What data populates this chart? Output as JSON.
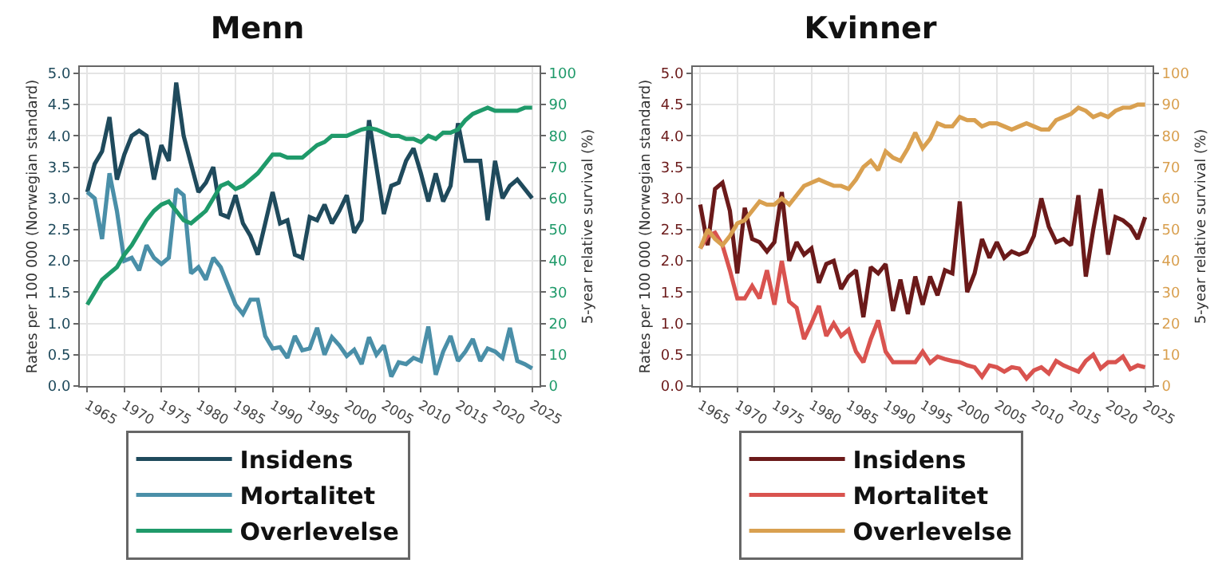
{
  "chart_data": [
    {
      "type": "line",
      "title": "Menn",
      "ylabel": "Rates per 100 000 (Norwegian standard)",
      "y2label": "5-year relative survival (%)",
      "x": [
        1965,
        1966,
        1967,
        1968,
        1969,
        1970,
        1971,
        1972,
        1973,
        1974,
        1975,
        1976,
        1977,
        1978,
        1979,
        1980,
        1981,
        1982,
        1983,
        1984,
        1985,
        1986,
        1987,
        1988,
        1989,
        1990,
        1991,
        1992,
        1993,
        1994,
        1995,
        1996,
        1997,
        1998,
        1999,
        2000,
        2001,
        2002,
        2003,
        2004,
        2005,
        2006,
        2007,
        2008,
        2009,
        2010,
        2011,
        2012,
        2013,
        2014,
        2015,
        2016,
        2017,
        2018,
        2019,
        2020,
        2021,
        2022,
        2023,
        2024,
        2025
      ],
      "series": [
        {
          "name": "Insidens",
          "color": "#1f4a5c",
          "values": [
            3.1,
            3.55,
            3.75,
            4.3,
            3.3,
            3.7,
            4.0,
            4.08,
            4.0,
            3.3,
            3.85,
            3.6,
            4.85,
            4.0,
            3.55,
            3.1,
            3.25,
            3.5,
            2.75,
            2.7,
            3.05,
            2.6,
            2.4,
            2.1,
            2.6,
            3.1,
            2.6,
            2.65,
            2.1,
            2.05,
            2.7,
            2.65,
            2.9,
            2.6,
            2.8,
            3.05,
            2.45,
            2.65,
            4.25,
            3.5,
            2.75,
            3.2,
            3.25,
            3.6,
            3.8,
            3.4,
            2.95,
            3.4,
            2.95,
            3.2,
            4.2,
            3.6,
            3.6,
            3.6,
            2.65,
            3.6,
            3.0,
            3.2,
            3.3,
            3.15,
            3.0
          ]
        },
        {
          "name": "Mortalitet",
          "color": "#4a8fa8",
          "values": [
            3.1,
            3.0,
            2.35,
            3.4,
            2.8,
            2.0,
            2.05,
            1.85,
            2.25,
            2.05,
            1.95,
            2.05,
            3.15,
            3.05,
            1.8,
            1.9,
            1.7,
            2.05,
            1.9,
            1.6,
            1.3,
            1.15,
            1.38,
            1.38,
            0.8,
            0.6,
            0.62,
            0.45,
            0.8,
            0.57,
            0.6,
            0.93,
            0.5,
            0.78,
            0.65,
            0.48,
            0.58,
            0.35,
            0.78,
            0.5,
            0.65,
            0.15,
            0.38,
            0.35,
            0.45,
            0.4,
            0.95,
            0.18,
            0.55,
            0.8,
            0.4,
            0.55,
            0.75,
            0.4,
            0.6,
            0.55,
            0.45,
            0.93,
            0.4,
            0.35,
            0.28
          ]
        },
        {
          "name": "Overlevelse",
          "color": "#1f9a6a",
          "axis": "y2",
          "values": [
            26,
            30,
            34,
            36,
            38,
            42,
            45,
            49,
            53,
            56,
            58,
            59,
            56,
            53,
            52,
            54,
            56,
            60,
            64,
            65,
            63,
            64,
            66,
            68,
            71,
            74,
            74,
            73,
            73,
            73,
            75,
            77,
            78,
            80,
            80,
            80,
            81,
            82,
            82.5,
            82,
            81,
            80,
            80,
            79,
            79,
            78,
            80,
            79,
            81,
            81,
            82,
            85,
            87,
            88,
            89,
            88,
            88,
            88,
            88,
            89,
            89
          ]
        }
      ],
      "xlim": [
        1964,
        2026
      ],
      "xticks": [
        1965,
        1970,
        1975,
        1980,
        1985,
        1990,
        1995,
        2000,
        2005,
        2010,
        2015,
        2020,
        2025
      ],
      "ylim": [
        0,
        5.1
      ],
      "yticks": [
        {
          "value": 0,
          "label": "0.0"
        },
        {
          "value": 0.5,
          "label": "0.5"
        },
        {
          "value": 1,
          "label": "1.0"
        },
        {
          "value": 1.5,
          "label": "1.5"
        },
        {
          "value": 2,
          "label": "2.0"
        },
        {
          "value": 2.5,
          "label": "2.5"
        },
        {
          "value": 3,
          "label": "3.0"
        },
        {
          "value": 3.5,
          "label": "3.5"
        },
        {
          "value": 4,
          "label": "4.0"
        },
        {
          "value": 4.5,
          "label": "4.5"
        },
        {
          "value": 5,
          "label": "5.0"
        }
      ],
      "y2lim": [
        0,
        102
      ],
      "y2ticks": [
        0,
        10,
        20,
        30,
        40,
        50,
        60,
        70,
        80,
        90,
        100
      ],
      "grid": true,
      "legend": "bottom"
    },
    {
      "type": "line",
      "title": "Kvinner",
      "ylabel": "Rates per 100 000 (Norwegian standard)",
      "y2label": "5-year relative survival (%)",
      "x": [
        1965,
        1966,
        1967,
        1968,
        1969,
        1970,
        1971,
        1972,
        1973,
        1974,
        1975,
        1976,
        1977,
        1978,
        1979,
        1980,
        1981,
        1982,
        1983,
        1984,
        1985,
        1986,
        1987,
        1988,
        1989,
        1990,
        1991,
        1992,
        1993,
        1994,
        1995,
        1996,
        1997,
        1998,
        1999,
        2000,
        2001,
        2002,
        2003,
        2004,
        2005,
        2006,
        2007,
        2008,
        2009,
        2010,
        2011,
        2012,
        2013,
        2014,
        2015,
        2016,
        2017,
        2018,
        2019,
        2020,
        2021,
        2022,
        2023,
        2024,
        2025
      ],
      "series": [
        {
          "name": "Insidens",
          "color": "#6b1a1a",
          "values": [
            2.9,
            2.25,
            3.15,
            3.25,
            2.8,
            1.8,
            2.85,
            2.35,
            2.3,
            2.15,
            2.3,
            3.1,
            2.0,
            2.3,
            2.1,
            2.2,
            1.65,
            1.95,
            2.0,
            1.55,
            1.75,
            1.85,
            1.1,
            1.9,
            1.8,
            1.95,
            1.2,
            1.7,
            1.15,
            1.75,
            1.3,
            1.75,
            1.45,
            1.85,
            1.8,
            2.95,
            1.5,
            1.8,
            2.35,
            2.05,
            2.3,
            2.05,
            2.15,
            2.1,
            2.15,
            2.4,
            3.0,
            2.55,
            2.3,
            2.35,
            2.25,
            3.05,
            1.75,
            2.5,
            3.15,
            2.1,
            2.7,
            2.65,
            2.55,
            2.35,
            2.7
          ]
        },
        {
          "name": "Mortalitet",
          "color": "#d9534f",
          "values": [
            2.2,
            2.4,
            2.45,
            2.25,
            1.85,
            1.4,
            1.4,
            1.6,
            1.4,
            1.85,
            1.3,
            2.0,
            1.35,
            1.25,
            0.75,
            1.0,
            1.28,
            0.8,
            1.0,
            0.8,
            0.9,
            0.55,
            0.38,
            0.75,
            1.05,
            0.55,
            0.38,
            0.38,
            0.38,
            0.38,
            0.55,
            0.37,
            0.47,
            0.43,
            0.4,
            0.38,
            0.33,
            0.3,
            0.15,
            0.33,
            0.3,
            0.23,
            0.3,
            0.28,
            0.12,
            0.25,
            0.3,
            0.2,
            0.4,
            0.33,
            0.28,
            0.23,
            0.4,
            0.5,
            0.28,
            0.38,
            0.38,
            0.47,
            0.27,
            0.33,
            0.3
          ]
        },
        {
          "name": "Overlevelse",
          "color": "#d9a050",
          "axis": "y2",
          "values": [
            44,
            50,
            47,
            45,
            48,
            52,
            53,
            56,
            59,
            58,
            58,
            60,
            58,
            61,
            64,
            65,
            66,
            65,
            64,
            64,
            63,
            66,
            70,
            72,
            69,
            75,
            73,
            72,
            76,
            81,
            76,
            79,
            84,
            83,
            83,
            86,
            85,
            85,
            83,
            84,
            84,
            83,
            82,
            83,
            84,
            83,
            82,
            82,
            85,
            86,
            87,
            89,
            88,
            86,
            87,
            86,
            88,
            89,
            89,
            90,
            90
          ]
        }
      ],
      "xlim": [
        1964,
        2026
      ],
      "xticks": [
        1965,
        1970,
        1975,
        1980,
        1985,
        1990,
        1995,
        2000,
        2005,
        2010,
        2015,
        2020,
        2025
      ],
      "ylim": [
        0,
        5.1
      ],
      "yticks": [
        {
          "value": 0,
          "label": "0.0"
        },
        {
          "value": 0.5,
          "label": "0.5"
        },
        {
          "value": 1,
          "label": "1.0"
        },
        {
          "value": 1.5,
          "label": "1.5"
        },
        {
          "value": 2,
          "label": "2.0"
        },
        {
          "value": 2.5,
          "label": "2.5"
        },
        {
          "value": 3,
          "label": "3.0"
        },
        {
          "value": 3.5,
          "label": "3.5"
        },
        {
          "value": 4,
          "label": "4.0"
        },
        {
          "value": 4.5,
          "label": "4.5"
        },
        {
          "value": 5,
          "label": "5.0"
        }
      ],
      "y2lim": [
        0,
        102
      ],
      "y2ticks": [
        0,
        10,
        20,
        30,
        40,
        50,
        60,
        70,
        80,
        90,
        100
      ],
      "grid": true,
      "legend": "bottom"
    }
  ]
}
